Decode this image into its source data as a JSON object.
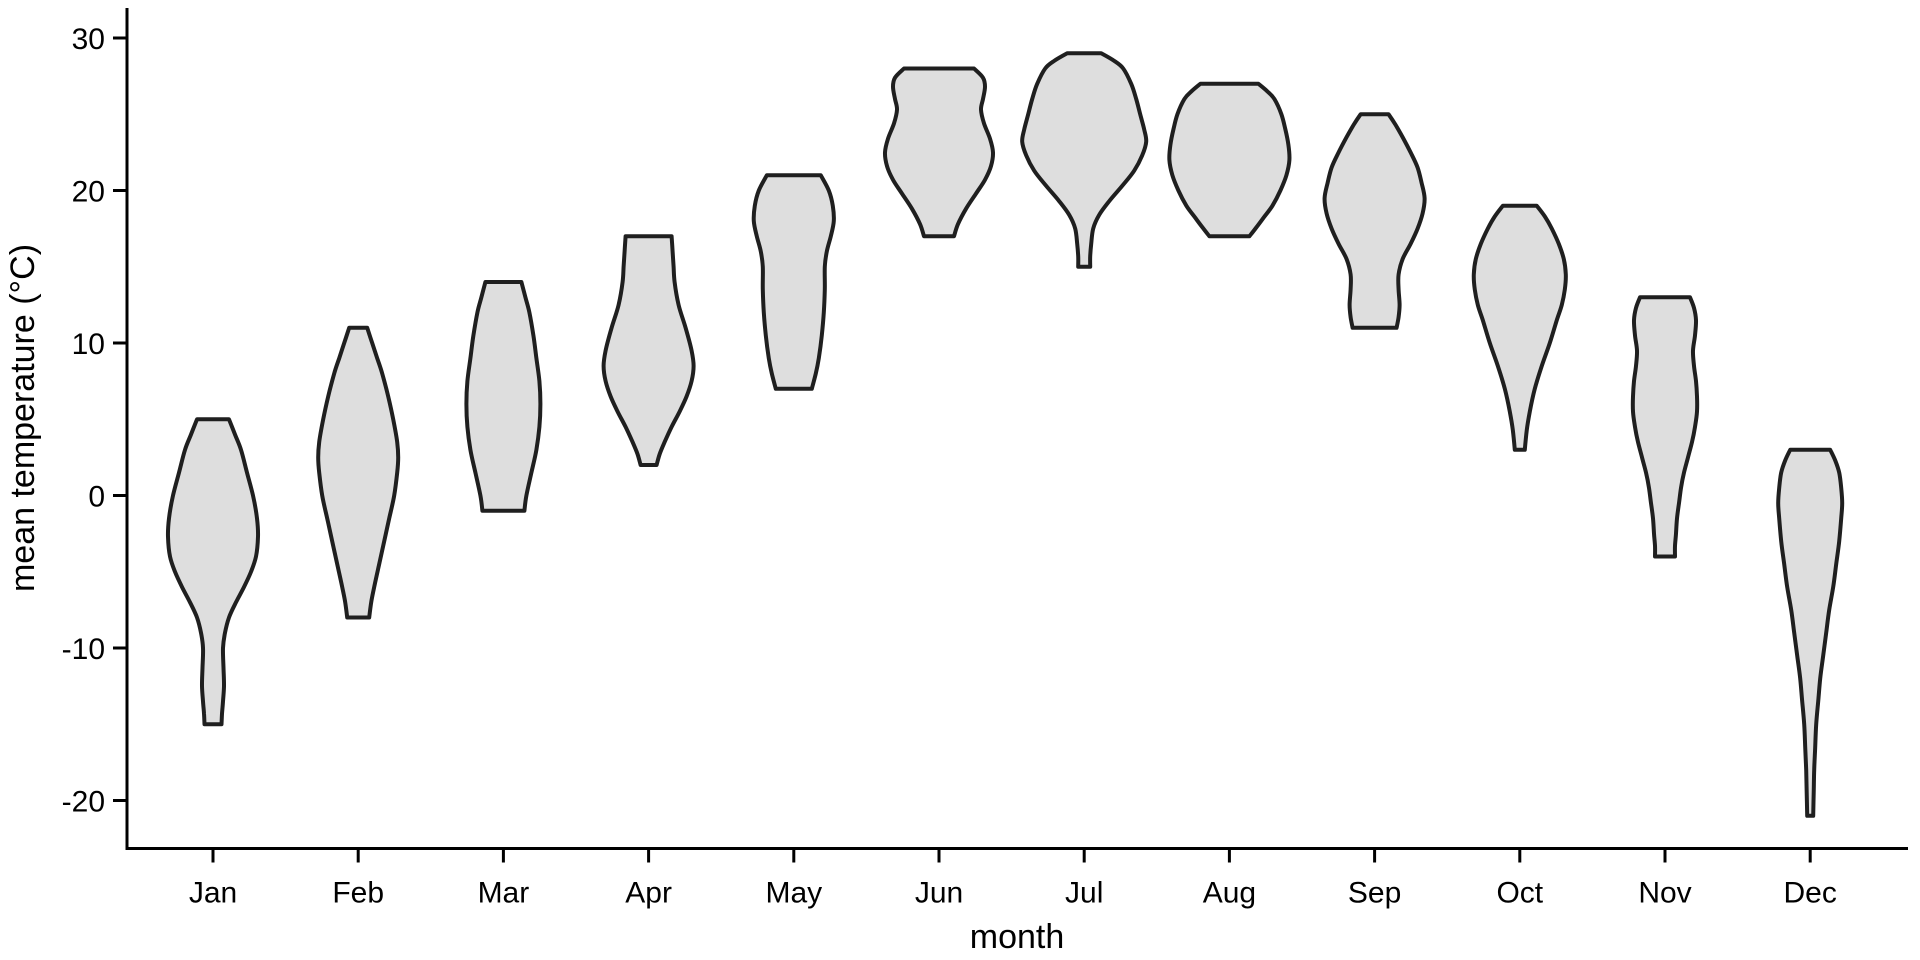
{
  "chart_data": {
    "type": "violin",
    "xlabel": "month",
    "ylabel": "mean temperature (°C)",
    "x_categories": [
      "Jan",
      "Feb",
      "Mar",
      "Apr",
      "May",
      "Jun",
      "Jul",
      "Aug",
      "Sep",
      "Oct",
      "Nov",
      "Dec"
    ],
    "y_ticks": [
      30,
      20,
      10,
      0,
      -10,
      -20
    ],
    "y_axis_shown_range": [
      -23,
      32
    ],
    "grid": "off",
    "legend": "none",
    "style": {
      "violin_fill": "#dedede",
      "violin_stroke": "#1f1f1f",
      "violin_stroke_width": 4,
      "axis_color": "#000000",
      "axis_stroke_width": 3,
      "background": "#ffffff"
    },
    "series": [
      {
        "month": "Jan",
        "min_c": -15,
        "max_c": 5,
        "profile": [
          [
            5,
            16
          ],
          [
            4,
            22
          ],
          [
            3,
            28
          ],
          [
            1.5,
            34
          ],
          [
            0,
            40
          ],
          [
            -1.5,
            44
          ],
          [
            -2.7,
            45
          ],
          [
            -4,
            43
          ],
          [
            -5,
            38
          ],
          [
            -6,
            31
          ],
          [
            -7,
            23
          ],
          [
            -8,
            16
          ],
          [
            -9,
            12
          ],
          [
            -10,
            10
          ],
          [
            -11.3,
            10.5
          ],
          [
            -12.5,
            11
          ],
          [
            -13.5,
            10
          ],
          [
            -14.3,
            9
          ],
          [
            -15,
            8.5
          ]
        ]
      },
      {
        "month": "Feb",
        "min_c": -8,
        "max_c": 11,
        "profile": [
          [
            11,
            9
          ],
          [
            10,
            14
          ],
          [
            9,
            19
          ],
          [
            8,
            24
          ],
          [
            6.5,
            30
          ],
          [
            5,
            35
          ],
          [
            3.5,
            39
          ],
          [
            2.5,
            40
          ],
          [
            1.5,
            39
          ],
          [
            0,
            36
          ],
          [
            -1.5,
            31
          ],
          [
            -3,
            26
          ],
          [
            -4.5,
            21
          ],
          [
            -6,
            16
          ],
          [
            -7,
            13
          ],
          [
            -8,
            11
          ]
        ]
      },
      {
        "month": "Mar",
        "min_c": -1,
        "max_c": 14,
        "profile": [
          [
            14,
            18
          ],
          [
            13,
            22
          ],
          [
            12,
            26
          ],
          [
            10.5,
            30
          ],
          [
            9,
            33
          ],
          [
            7.5,
            36
          ],
          [
            6,
            37
          ],
          [
            4.5,
            36
          ],
          [
            3,
            33
          ],
          [
            1.5,
            28
          ],
          [
            0,
            23
          ],
          [
            -1,
            21
          ]
        ]
      },
      {
        "month": "Apr",
        "min_c": 2,
        "max_c": 17,
        "profile": [
          [
            17,
            23
          ],
          [
            16,
            24
          ],
          [
            15,
            25
          ],
          [
            14,
            26
          ],
          [
            12.5,
            30
          ],
          [
            11,
            37
          ],
          [
            9.5,
            43
          ],
          [
            8.5,
            45
          ],
          [
            7.5,
            43
          ],
          [
            6.5,
            38
          ],
          [
            5.5,
            31
          ],
          [
            4.5,
            23
          ],
          [
            3.5,
            16
          ],
          [
            2.7,
            11
          ],
          [
            2,
            8
          ]
        ]
      },
      {
        "month": "May",
        "min_c": 7,
        "max_c": 21,
        "profile": [
          [
            21,
            27
          ],
          [
            20,
            35
          ],
          [
            19,
            39
          ],
          [
            18,
            40
          ],
          [
            17,
            37
          ],
          [
            16,
            33
          ],
          [
            15,
            31
          ],
          [
            13.5,
            31
          ],
          [
            12,
            30
          ],
          [
            10.5,
            28
          ],
          [
            9,
            25
          ],
          [
            8,
            22
          ],
          [
            7,
            18
          ]
        ]
      },
      {
        "month": "Jun",
        "min_c": 17,
        "max_c": 28,
        "profile": [
          [
            28,
            35
          ],
          [
            27.4,
            44
          ],
          [
            26.8,
            46
          ],
          [
            26,
            44
          ],
          [
            25.3,
            42
          ],
          [
            24.4,
            45
          ],
          [
            23.4,
            51
          ],
          [
            22.5,
            54
          ],
          [
            21.6,
            52
          ],
          [
            20.7,
            46
          ],
          [
            19.8,
            37
          ],
          [
            18.8,
            27
          ],
          [
            17.8,
            19
          ],
          [
            17,
            15
          ]
        ]
      },
      {
        "month": "Jul",
        "min_c": 15,
        "max_c": 29,
        "profile": [
          [
            29,
            17
          ],
          [
            28.5,
            30
          ],
          [
            28,
            39
          ],
          [
            27,
            47
          ],
          [
            26,
            52
          ],
          [
            25,
            56
          ],
          [
            24,
            60
          ],
          [
            23.2,
            62
          ],
          [
            22.3,
            58
          ],
          [
            21.3,
            50
          ],
          [
            20.3,
            38
          ],
          [
            19.3,
            25
          ],
          [
            18.4,
            15
          ],
          [
            17.5,
            9
          ],
          [
            16.5,
            7
          ],
          [
            15.7,
            6
          ],
          [
            15,
            6
          ]
        ]
      },
      {
        "month": "Aug",
        "min_c": 17,
        "max_c": 27,
        "profile": [
          [
            27,
            29
          ],
          [
            26.5,
            38
          ],
          [
            26,
            45
          ],
          [
            25,
            52
          ],
          [
            24,
            56
          ],
          [
            23,
            59
          ],
          [
            22,
            60
          ],
          [
            21,
            57
          ],
          [
            20,
            51
          ],
          [
            19,
            43
          ],
          [
            18.2,
            34
          ],
          [
            17.5,
            26
          ],
          [
            17,
            20
          ]
        ]
      },
      {
        "month": "Sep",
        "min_c": 11,
        "max_c": 25,
        "profile": [
          [
            25,
            14
          ],
          [
            24.3,
            21
          ],
          [
            23.5,
            28
          ],
          [
            22.5,
            36
          ],
          [
            21.5,
            43
          ],
          [
            20.5,
            47
          ],
          [
            19.5,
            50
          ],
          [
            18.5,
            48
          ],
          [
            17.5,
            43
          ],
          [
            16.5,
            36
          ],
          [
            15.5,
            28
          ],
          [
            14.5,
            24
          ],
          [
            13.5,
            24
          ],
          [
            12.5,
            25
          ],
          [
            11.7,
            24
          ],
          [
            11,
            22
          ]
        ]
      },
      {
        "month": "Oct",
        "min_c": 3,
        "max_c": 19,
        "profile": [
          [
            19,
            17
          ],
          [
            18.3,
            25
          ],
          [
            17.5,
            32
          ],
          [
            16.5,
            39
          ],
          [
            15.5,
            44
          ],
          [
            14.5,
            46
          ],
          [
            13.5,
            45
          ],
          [
            12.5,
            42
          ],
          [
            11.5,
            37
          ],
          [
            10,
            30
          ],
          [
            8.5,
            22
          ],
          [
            7,
            15
          ],
          [
            5.5,
            10
          ],
          [
            4.3,
            7
          ],
          [
            3,
            5
          ]
        ]
      },
      {
        "month": "Nov",
        "min_c": -4,
        "max_c": 13,
        "profile": [
          [
            13,
            25
          ],
          [
            12.3,
            29
          ],
          [
            11.5,
            31
          ],
          [
            10.5,
            30
          ],
          [
            9.5,
            28
          ],
          [
            8.5,
            29
          ],
          [
            7.5,
            31
          ],
          [
            6.5,
            32
          ],
          [
            5.5,
            32
          ],
          [
            4.5,
            30
          ],
          [
            3.5,
            27
          ],
          [
            2.5,
            23
          ],
          [
            1.5,
            19
          ],
          [
            0.5,
            16
          ],
          [
            -0.5,
            14
          ],
          [
            -1.5,
            12
          ],
          [
            -2.5,
            11
          ],
          [
            -3.3,
            10
          ],
          [
            -4,
            10
          ]
        ]
      },
      {
        "month": "Dec",
        "min_c": -21,
        "max_c": 3,
        "profile": [
          [
            3,
            20
          ],
          [
            2.3,
            25
          ],
          [
            1.5,
            29
          ],
          [
            0.5,
            31
          ],
          [
            -0.5,
            32
          ],
          [
            -1.5,
            31
          ],
          [
            -3,
            29
          ],
          [
            -4.5,
            26
          ],
          [
            -6,
            23
          ],
          [
            -7.5,
            19
          ],
          [
            -9,
            16
          ],
          [
            -10.5,
            13
          ],
          [
            -12,
            10
          ],
          [
            -13.5,
            8
          ],
          [
            -15,
            6
          ],
          [
            -16.5,
            5
          ],
          [
            -18,
            4
          ],
          [
            -19.5,
            3.5
          ],
          [
            -21,
            3
          ]
        ]
      }
    ]
  }
}
